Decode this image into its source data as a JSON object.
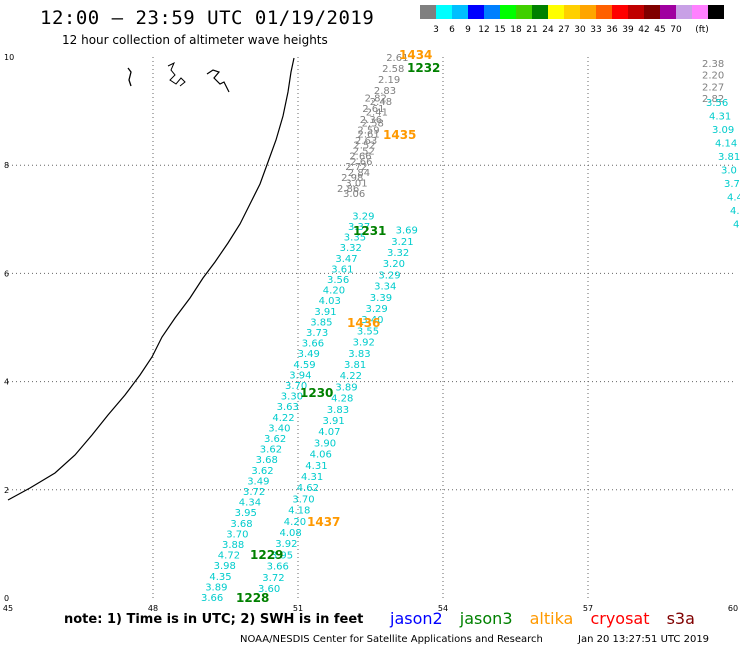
{
  "title": "12:00 – 23:59 UTC 01/19/2019",
  "subtitle": "12 hour collection of altimeter wave heights",
  "legend": {
    "colors": [
      "#808080",
      "#00ffff",
      "#00bfff",
      "#0000ff",
      "#0080ff",
      "#00ff00",
      "#40d000",
      "#008000",
      "#ffff00",
      "#ffd000",
      "#ffa500",
      "#ff6000",
      "#ff0000",
      "#c00000",
      "#800000",
      "#a000a0",
      "#c8a0e6",
      "#ff80ff",
      "#000000"
    ],
    "labels": [
      "3",
      "6",
      "9",
      "12",
      "15",
      "18",
      "21",
      "24",
      "27",
      "30",
      "33",
      "36",
      "39",
      "42",
      "45",
      "70",
      "(ft)"
    ]
  },
  "axes": {
    "x_ticks": [
      "45",
      "48",
      "51",
      "54",
      "57",
      "60"
    ],
    "y_ticks": [
      "0",
      "2",
      "4",
      "6",
      "8",
      "10"
    ],
    "x_range": [
      45,
      60
    ],
    "y_range": [
      0,
      10
    ]
  },
  "tracks": {
    "a": {
      "cyan": [
        "3.66",
        "3.89",
        "4.35",
        "3.98",
        "4.72",
        "3.88",
        "3.70",
        "3.68",
        "3.95",
        "4.34",
        "3.72",
        "3.49",
        "3.62",
        "3.68",
        "3.62",
        "3.62",
        "3.40",
        "4.22",
        "3.63",
        "3.30",
        "3.70",
        "3.94",
        "4.59",
        "3.49",
        "3.66",
        "3.73",
        "3.85",
        "3.91",
        "4.03",
        "4.20",
        "3.56",
        "3.61",
        "3.47",
        "3.32",
        "3.35",
        "3.37",
        "3.29"
      ],
      "gray": [
        "3.06",
        "3.01",
        "2.84",
        "2.66",
        "2.52",
        "2.63",
        "2.59",
        "2.36",
        "2.61",
        "2.82"
      ]
    },
    "b": {
      "cyan": [
        "3.60",
        "3.72",
        "3.66",
        "3.95",
        "3.92",
        "4.08",
        "4.20",
        "4.18",
        "3.70",
        "4.62",
        "4.31",
        "4.31",
        "4.06",
        "3.90",
        "4.07",
        "3.91",
        "3.83",
        "4.28",
        "3.89",
        "4.22",
        "3.81",
        "3.83",
        "3.92",
        "3.55",
        "3.40",
        "3.29",
        "3.39",
        "3.34",
        "3.29",
        "3.20",
        "3.32",
        "3.21",
        "3.69"
      ],
      "gray": [
        "2.86",
        "2.98",
        "2.72",
        "2.66",
        "2.52",
        "2.61",
        "2.58",
        "2.41",
        "2.48",
        "2.83",
        "2.19",
        "2.58",
        "2.61"
      ]
    },
    "c": {
      "cyan": [
        "3.56",
        "4.31",
        "3.09",
        "4.14",
        "3.81",
        "3.0",
        "3.7",
        "4.4",
        "4.",
        "4."
      ],
      "gray": [
        "2.38",
        "2.20",
        "2.27",
        "2.82"
      ]
    }
  },
  "times": [
    {
      "text": "1434",
      "sat": "altika"
    },
    {
      "text": "1232",
      "sat": "jason3"
    },
    {
      "text": "1435",
      "sat": "altika"
    },
    {
      "text": "1231",
      "sat": "jason3"
    },
    {
      "text": "1436",
      "sat": "altika"
    },
    {
      "text": "1230",
      "sat": "jason3"
    },
    {
      "text": "1437",
      "sat": "altika"
    },
    {
      "text": "1229",
      "sat": "jason3"
    },
    {
      "text": "1228",
      "sat": "jason3"
    }
  ],
  "sat_colors": {
    "jason2": "#0000ff",
    "jason3": "#008000",
    "altika": "#ff9900",
    "cryosat": "#ff0000",
    "s3a": "#800000",
    "cyan_values": "#00cccc",
    "gray_values": "#808080"
  },
  "footer": {
    "note": "note:  1) Time is in UTC;  2) SWH is in feet",
    "satellites": [
      "jason2",
      "jason3",
      "altika",
      "cryosat",
      "s3a"
    ],
    "credit": "NOAA/NESDIS Center for Satellite Applications and Research",
    "timestamp": "Jan 20 13:27:51 UTC 2019"
  }
}
